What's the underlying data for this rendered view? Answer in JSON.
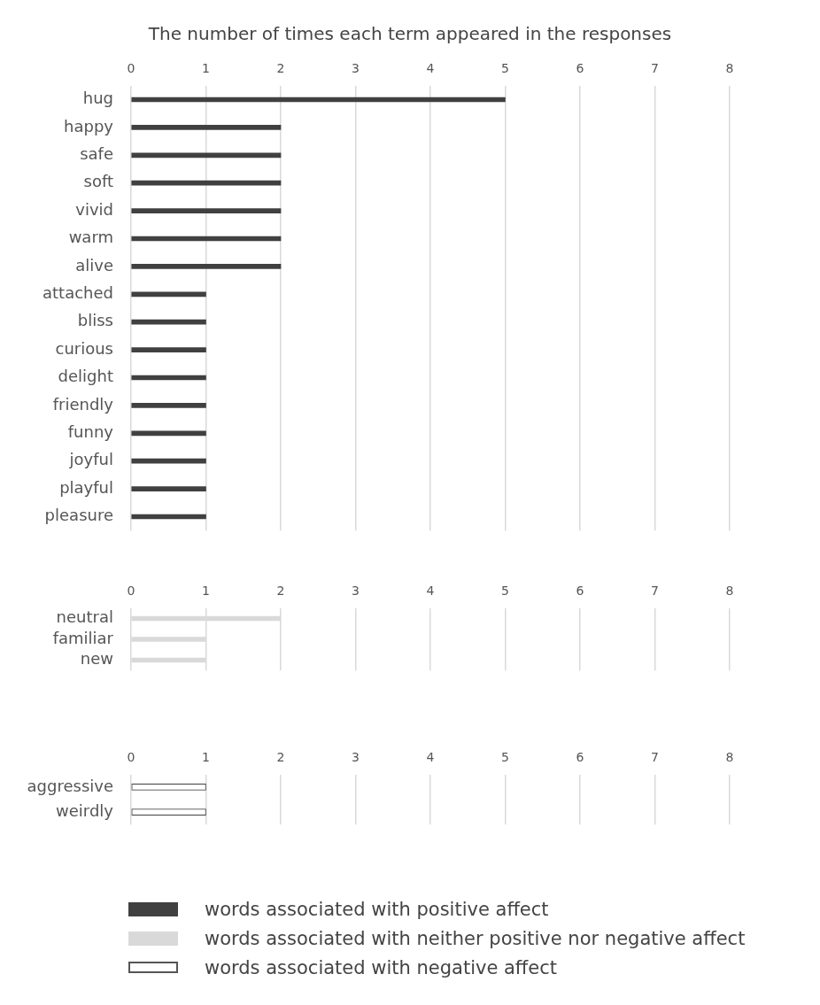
{
  "chart_data": [
    {
      "type": "bar",
      "orientation": "horizontal",
      "title": "The number of times each term appeared in the responses",
      "categories": [
        "hug",
        "happy",
        "safe",
        "soft",
        "vivid",
        "warm",
        "alive",
        "attached",
        "bliss",
        "curious",
        "delight",
        "friendly",
        "funny",
        "joyful",
        "playful",
        "pleasure"
      ],
      "series": [
        {
          "name": "words associated with positive affect",
          "color": "#404040",
          "values": [
            5,
            2,
            2,
            2,
            2,
            2,
            2,
            1,
            1,
            1,
            1,
            1,
            1,
            1,
            1,
            1
          ]
        }
      ],
      "xlim": [
        0,
        8
      ],
      "xticks": [
        0,
        1,
        2,
        3,
        4,
        5,
        6,
        7,
        8
      ],
      "grid": "x",
      "legend": "bottom"
    },
    {
      "type": "bar",
      "orientation": "horizontal",
      "categories": [
        "neutral",
        "familiar",
        "new"
      ],
      "series": [
        {
          "name": "words associated with neither positive nor negative affect",
          "color": "#d9d9d9",
          "values": [
            2,
            1,
            1
          ]
        }
      ],
      "xlim": [
        0,
        8
      ],
      "xticks": [
        0,
        1,
        2,
        3,
        4,
        5,
        6,
        7,
        8
      ],
      "grid": "x",
      "legend": "bottom"
    },
    {
      "type": "bar",
      "orientation": "horizontal",
      "categories": [
        "aggressive",
        "weirdly"
      ],
      "series": [
        {
          "name": "words associated with negative affect",
          "color": "#ffffff",
          "values": [
            1,
            1
          ]
        }
      ],
      "xlim": [
        0,
        8
      ],
      "xticks": [
        0,
        1,
        2,
        3,
        4,
        5,
        6,
        7,
        8
      ],
      "grid": "x",
      "legend": "bottom"
    }
  ]
}
